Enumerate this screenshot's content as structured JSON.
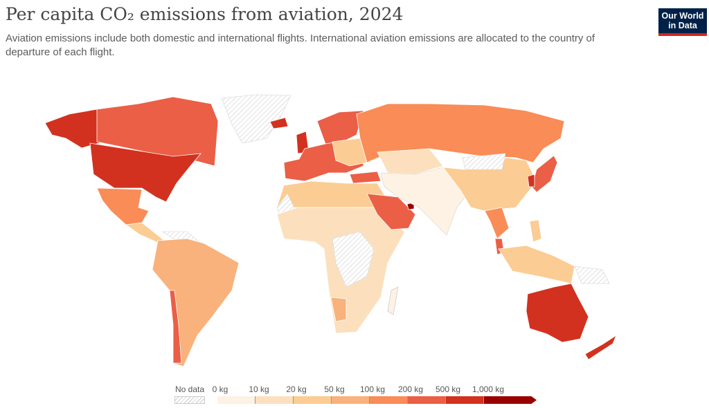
{
  "header": {
    "title": "Per capita CO₂ emissions from aviation, 2024",
    "subtitle": "Aviation emissions include both domestic and international flights. International aviation emissions are allocated to the country of departure of each flight."
  },
  "logo": {
    "line1": "Our World",
    "line2": "in Data",
    "bg": "#002147",
    "accent": "#ce261e"
  },
  "legend": {
    "no_data_label": "No data",
    "tick_labels": [
      "0 kg",
      "10 kg",
      "20 kg",
      "50 kg",
      "100 kg",
      "200 kg",
      "500 kg",
      "1,000 kg"
    ],
    "bins": [
      {
        "range": "0-10 kg",
        "color": "#fdf2e3"
      },
      {
        "range": "10-20 kg",
        "color": "#fce0bd"
      },
      {
        "range": "20-50 kg",
        "color": "#fbcc93"
      },
      {
        "range": "50-100 kg",
        "color": "#f9b27b"
      },
      {
        "range": "100-200 kg",
        "color": "#f98c57"
      },
      {
        "range": "200-500 kg",
        "color": "#ea5f46"
      },
      {
        "range": "500-1,000 kg",
        "color": "#d3311f"
      },
      {
        "range": ">1,000 kg",
        "color": "#990000"
      }
    ]
  }
}
